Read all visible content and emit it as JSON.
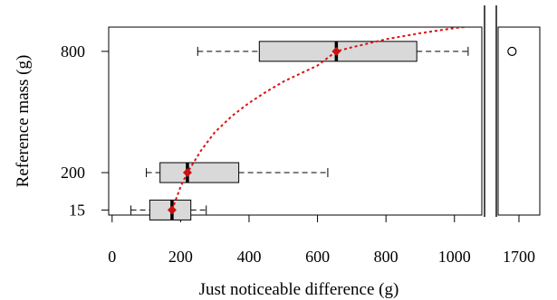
{
  "chart_data": {
    "type": "boxplot",
    "orientation": "horizontal",
    "xlabel": "Just noticeable difference (g)",
    "ylabel": "Reference mass (g)",
    "categories": [
      "15",
      "200",
      "800"
    ],
    "category_values": [
      15,
      200,
      800
    ],
    "ylim": [
      -10,
      920
    ],
    "axis_break": true,
    "panels": [
      {
        "name": "main",
        "xlim": [
          -10,
          1080
        ],
        "ticks": [
          0,
          200,
          400,
          600,
          800,
          1000
        ]
      },
      {
        "name": "outlier",
        "xlim": [
          1640,
          1760
        ],
        "ticks": [
          1700
        ]
      }
    ],
    "boxes": [
      {
        "category": "15",
        "whisker_low": 55,
        "q1": 110,
        "median": 175,
        "q3": 230,
        "whisker_high": 275,
        "mean": 175
      },
      {
        "category": "200",
        "whisker_low": 100,
        "q1": 140,
        "median": 220,
        "q3": 370,
        "whisker_high": 630,
        "mean": 220
      },
      {
        "category": "800",
        "whisker_low": 250,
        "q1": 430,
        "median": 655,
        "q3": 890,
        "whisker_high": 1040,
        "mean": 655
      }
    ],
    "outliers": [
      {
        "category": "800",
        "x": 1680
      }
    ],
    "fit_curve": {
      "style": "dotted",
      "color": "#dd1111",
      "points": [
        [
          175,
          15
        ],
        [
          200,
          130
        ],
        [
          220,
          200
        ],
        [
          260,
          310
        ],
        [
          300,
          400
        ],
        [
          350,
          480
        ],
        [
          400,
          545
        ],
        [
          450,
          600
        ],
        [
          500,
          650
        ],
        [
          550,
          690
        ],
        [
          600,
          730
        ],
        [
          655,
          800
        ],
        [
          700,
          820
        ],
        [
          800,
          860
        ],
        [
          900,
          890
        ],
        [
          1000,
          915
        ],
        [
          1030,
          920
        ]
      ]
    },
    "colors": {
      "box_fill": "#d9d9d9",
      "mean_marker": "#cc1111",
      "fit_line": "#dd1111"
    }
  }
}
